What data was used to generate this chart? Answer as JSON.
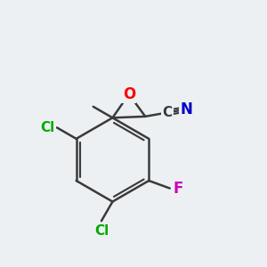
{
  "bg_color": "#edf0f2",
  "bond_color": "#3a3a3a",
  "bond_width": 1.8,
  "atom_colors": {
    "O": "#ff0000",
    "Cl": "#00aa00",
    "F": "#cc00bb",
    "C": "#3a3a3a",
    "N": "#0000cc"
  },
  "font_size_atom": 11,
  "font_size_small": 9
}
